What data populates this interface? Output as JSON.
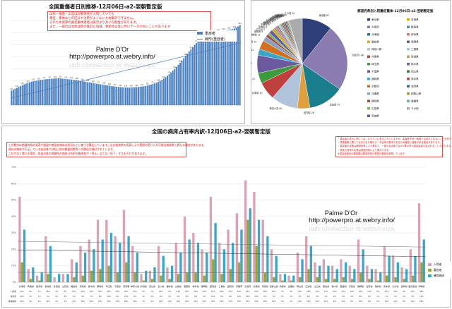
{
  "top_left": {
    "title": "全国重傷者日別推移-12月06日-a2-翌朝暫定版",
    "notes": [
      "山形・福島・広島は対象患者が入院していても",
      "重症・重体などの区分や注釈がよくないため集計できません。",
      "そのため実際の重症重体患者は表示より多い可能性があります。",
      "また、一部の自治体は他の集計と同様、更新停止等に伴いデータが古いことがあります"
    ],
    "watermark_name": "Palme D'Or",
    "watermark_url": "http://powerpro.at.webry.info/",
    "colors": {
      "bar": "#4a7fc0",
      "trend": "#4a7fc0"
    }
  },
  "top_right": {
    "title": "都道府県別入院重症重体-12月06日-a2-翌朝暫定版"
  },
  "bottom": {
    "title": "全国の病床占有率内訳-12月06日-a2-翌朝暫定版",
    "notes_left": [
      "この数字は都道府県の発表や報道や感染症病床の状況などに基づき算出しています。なお各病院の発表により実際の受け入れ可能な病床数と異なる場合があります。",
      "現在の病床が不足している自治体では既に他の都道府県等への搬送が検討されています。",
      "これが全く増える場合、各自治体の保健所の病床占有率計算体制が「停止」または「低下」するおそれがあります。"
    ],
    "notes_right": [
      "・重症者の表示に関してはこのグラフに表示されていますが、患者数が多い地域では表示されないことがあります。",
      "・感染者数に関してはまたまた集計データ由来の数字であるため報告に誤差がある場合があります。",
      "・重症者の定義は都道府県により異なり、一部の自治体ではICU等以外の重症患者も含まれることがあります。",
      "・病床占有率の定義は都道府県により異なります。",
      "※感染症病床の確保数は都道府県の発表や報道を参照しています。"
    ],
    "watermark_name": "Palme D'Or",
    "watermark_url": "http://powerpro.at.webry.info/",
    "colors": {
      "hosp": "#d9a3b4",
      "severe": "#9aa63a",
      "beds": "#3aa6c8"
    }
  },
  "chart_data": [
    {
      "type": "bar",
      "title": "全国重傷者日別推移-12月06日-a2-翌朝暫定版",
      "values": [
        120,
        128,
        136,
        142,
        150,
        158,
        165,
        172,
        178,
        182,
        188,
        193,
        197,
        200,
        203,
        205,
        208,
        210,
        212,
        214,
        215,
        217,
        218,
        219,
        220,
        221,
        222,
        221,
        219,
        218,
        216,
        214,
        213,
        212,
        210,
        208,
        206,
        204,
        201,
        198,
        196,
        193,
        190,
        188,
        185,
        182,
        180,
        177,
        175,
        172,
        170,
        168,
        165,
        163,
        160,
        158,
        156,
        154,
        152,
        150,
        149,
        148,
        147,
        146,
        145,
        145,
        146,
        147,
        148,
        149,
        150,
        152,
        154,
        156,
        158,
        162,
        166,
        170,
        175,
        180,
        186,
        193,
        201,
        210,
        220,
        231,
        243,
        256,
        270,
        285,
        300,
        316,
        333,
        350,
        368,
        387,
        406,
        425,
        444,
        462,
        480,
        497,
        513,
        528,
        542,
        555,
        566,
        576,
        584,
        590,
        594,
        597,
        600,
        603,
        606,
        610,
        613,
        616,
        619,
        621,
        623,
        625,
        628,
        634,
        642,
        651,
        661
      ],
      "series": [
        {
          "name": "重症者",
          "kind": "bar"
        },
        {
          "name": "線形(重症者)",
          "kind": "trend"
        }
      ],
      "ylim": [
        0,
        700
      ],
      "legend": "top-right"
    },
    {
      "type": "pie",
      "title": "都道府県別入院重症重体-12月06日-a2-翌朝暫定版",
      "labels": [
        "東京都",
        "大阪府",
        "北海道",
        "愛知県",
        "神奈川県",
        "兵庫県",
        "埼玉県",
        "千葉県",
        "福岡県",
        "京都府",
        "沖縄県",
        "静岡県",
        "広島県",
        "茨城県",
        "奈良県",
        "群馬県",
        "岐阜県",
        "長野県",
        "三重県",
        "宮城県",
        "栃木県",
        "岡山県",
        "熊本県",
        "滋賀県",
        "和歌山県",
        "愛媛県",
        "その他"
      ],
      "values": [
        67,
        148,
        79,
        28,
        60,
        40,
        23,
        40,
        14,
        20,
        11,
        6,
        5,
        8,
        6,
        3,
        5,
        3,
        4,
        4,
        3,
        3,
        4,
        3,
        3,
        2,
        30
      ],
      "colors": [
        "#2e3f7a",
        "#8a7bb0",
        "#1b7e8c",
        "#e0a040",
        "#b0c4dc",
        "#c04040",
        "#3c9c3c",
        "#6c5aa0",
        "#3aa6c8",
        "#d07020",
        "#8aa0c0",
        "#a04a4a",
        "#80b060",
        "#5a5ab0",
        "#dcb000",
        "#4a90c0",
        "#e07880",
        "#6a6a6a",
        "#90d0e0",
        "#c0a070",
        "#7060a0",
        "#408040",
        "#b05050",
        "#3070b0",
        "#a0a040",
        "#70b0b0",
        "#aaaaaa"
      ],
      "legend": "right"
    },
    {
      "type": "bar",
      "title": "全国の病床占有率内訳-12月06日-a2-翌朝暫定版",
      "categories": [
        "北海道",
        "青森県",
        "岩手県",
        "宮城県",
        "秋田県",
        "山形県",
        "福島県",
        "茨城県",
        "栃木県",
        "群馬県",
        "埼玉県",
        "千葉県",
        "東京都",
        "神奈川県",
        "新潟県",
        "富山県",
        "石川県",
        "福井県",
        "山梨県",
        "長野県",
        "岐阜県",
        "静岡県",
        "愛知県",
        "三重県",
        "滋賀県",
        "京都府",
        "大阪府",
        "兵庫県",
        "奈良県",
        "和歌山県",
        "鳥取県",
        "島根県",
        "岡山県",
        "広島県",
        "山口県",
        "徳島県",
        "香川県",
        "愛媛県",
        "高知県",
        "福岡県",
        "佐賀県",
        "長崎県",
        "熊本県",
        "大分県",
        "宮崎県",
        "鹿児島県",
        "沖縄県"
      ],
      "series": [
        {
          "name": "入院者",
          "values": [
            52,
            8,
            4,
            28,
            3,
            5,
            14,
            22,
            26,
            38,
            38,
            28,
            44,
            22,
            5,
            7,
            22,
            9,
            24,
            40,
            30,
            20,
            52,
            24,
            32,
            42,
            62,
            55,
            38,
            20,
            5,
            4,
            18,
            28,
            12,
            14,
            10,
            14,
            10,
            26,
            10,
            8,
            22,
            16,
            9,
            20,
            48
          ]
        },
        {
          "name": "重症者",
          "values": [
            12,
            2,
            1,
            5,
            0,
            0,
            3,
            4,
            7,
            8,
            10,
            6,
            12,
            6,
            1,
            2,
            4,
            2,
            5,
            6,
            6,
            4,
            14,
            5,
            8,
            12,
            38,
            22,
            6,
            3,
            1,
            1,
            3,
            8,
            3,
            2,
            2,
            3,
            2,
            6,
            2,
            1,
            4,
            3,
            2,
            4,
            12
          ]
        },
        {
          "name": "確保病床",
          "values": [
            32,
            9,
            6,
            22,
            5,
            5,
            12,
            18,
            20,
            26,
            30,
            24,
            28,
            18,
            7,
            9,
            16,
            10,
            18,
            26,
            24,
            18,
            36,
            20,
            24,
            32,
            45,
            38,
            28,
            16,
            5,
            4,
            14,
            22,
            10,
            10,
            8,
            12,
            8,
            20,
            8,
            6,
            16,
            12,
            8,
            16,
            26
          ]
        }
      ],
      "ylim": [
        0,
        70
      ],
      "legend": "right"
    }
  ]
}
